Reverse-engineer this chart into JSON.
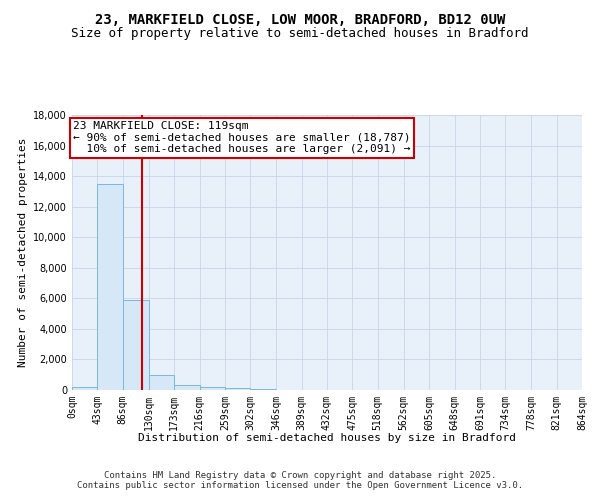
{
  "title_line1": "23, MARKFIELD CLOSE, LOW MOOR, BRADFORD, BD12 0UW",
  "title_line2": "Size of property relative to semi-detached houses in Bradford",
  "xlabel": "Distribution of semi-detached houses by size in Bradford",
  "ylabel": "Number of semi-detached properties",
  "bar_values": [
    200,
    13500,
    5900,
    1000,
    300,
    200,
    100,
    50,
    0,
    0,
    0,
    0,
    0,
    0,
    0,
    0,
    0,
    0,
    0,
    0
  ],
  "bin_edges": [
    0,
    43,
    86,
    130,
    173,
    216,
    259,
    302,
    346,
    389,
    432,
    475,
    518,
    562,
    605,
    648,
    691,
    734,
    778,
    821,
    864
  ],
  "bin_labels": [
    "0sqm",
    "43sqm",
    "86sqm",
    "130sqm",
    "173sqm",
    "216sqm",
    "259sqm",
    "302sqm",
    "346sqm",
    "389sqm",
    "432sqm",
    "475sqm",
    "518sqm",
    "562sqm",
    "605sqm",
    "648sqm",
    "691sqm",
    "734sqm",
    "778sqm",
    "821sqm",
    "864sqm"
  ],
  "bar_color": "#d6e8f7",
  "bar_edge_color": "#7ab8db",
  "property_line_x": 119,
  "property_line_color": "#cc0000",
  "annotation_text": "23 MARKFIELD CLOSE: 119sqm\n← 90% of semi-detached houses are smaller (18,787)\n  10% of semi-detached houses are larger (2,091) →",
  "annotation_box_color": "#cc0000",
  "annotation_text_color": "#000000",
  "ylim": [
    0,
    18000
  ],
  "yticks": [
    0,
    2000,
    4000,
    6000,
    8000,
    10000,
    12000,
    14000,
    16000,
    18000
  ],
  "background_color": "#ffffff",
  "axes_facecolor": "#e8f0fa",
  "grid_color": "#c8d4e8",
  "footer_line1": "Contains HM Land Registry data © Crown copyright and database right 2025.",
  "footer_line2": "Contains public sector information licensed under the Open Government Licence v3.0.",
  "title_fontsize": 10,
  "subtitle_fontsize": 9,
  "axis_label_fontsize": 8,
  "tick_fontsize": 7,
  "annotation_fontsize": 8,
  "footer_fontsize": 6.5
}
